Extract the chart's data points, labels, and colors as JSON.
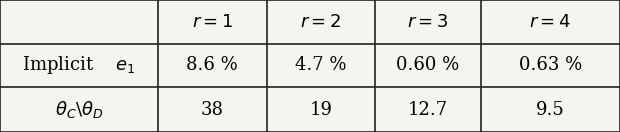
{
  "col_headers": [
    "$r = 1$",
    "$r = 2$",
    "$r = 3$",
    "$r = 4$"
  ],
  "row1_label": "Implicit $\\quad e_1$",
  "row1_values": [
    "8.6 %",
    "4.7 %",
    "0.60 %",
    "0.63 %"
  ],
  "row2_label": "$\\theta_C\\backslash\\theta_D$",
  "row2_values": [
    "38",
    "19",
    "12.7",
    "9.5"
  ],
  "bg_color": "#f5f5f0",
  "line_color": "#222222",
  "fontsize": 13,
  "figsize": [
    6.2,
    1.32
  ],
  "dpi": 100
}
